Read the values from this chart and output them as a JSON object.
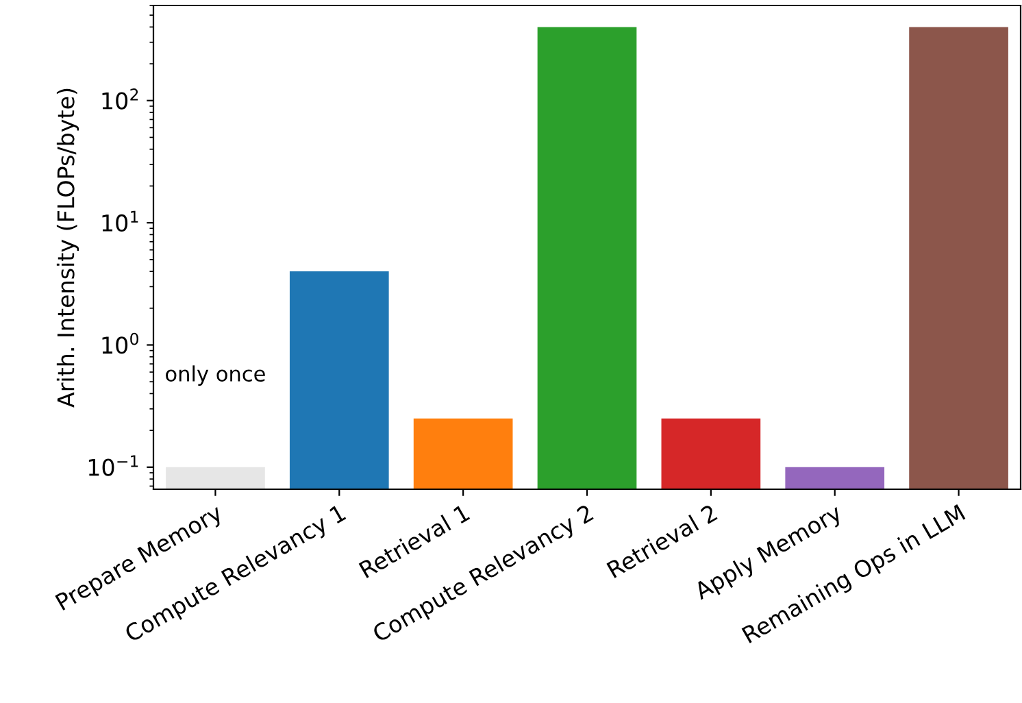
{
  "chart_data": {
    "type": "bar",
    "ylabel": "Arith. Intensity (FLOPs/byte)",
    "categories": [
      "Prepare Memory",
      "Compute Relevancy 1",
      "Retrieval 1",
      "Compute Relevancy 2",
      "Retrieval 2",
      "Apply Memory",
      "Remaining Ops in LLM"
    ],
    "values": [
      0.1,
      4,
      0.25,
      400,
      0.25,
      0.1,
      400
    ],
    "colors": [
      "#e6e6e6",
      "#1f77b4",
      "#ff7f0e",
      "#2ca02c",
      "#d62728",
      "#9467bd",
      "#8c564b"
    ],
    "log": true,
    "ylim": [
      0.066,
      600
    ],
    "yticks": [
      {
        "value": 0.1,
        "label": "10$^{−1}$"
      },
      {
        "value": 1,
        "label": "10$^{0}$"
      },
      {
        "value": 10,
        "label": "10$^{1}$"
      },
      {
        "value": 100,
        "label": "10$^{2}$"
      }
    ],
    "annotations": [
      "only once"
    ],
    "grid": false,
    "legend": false
  }
}
